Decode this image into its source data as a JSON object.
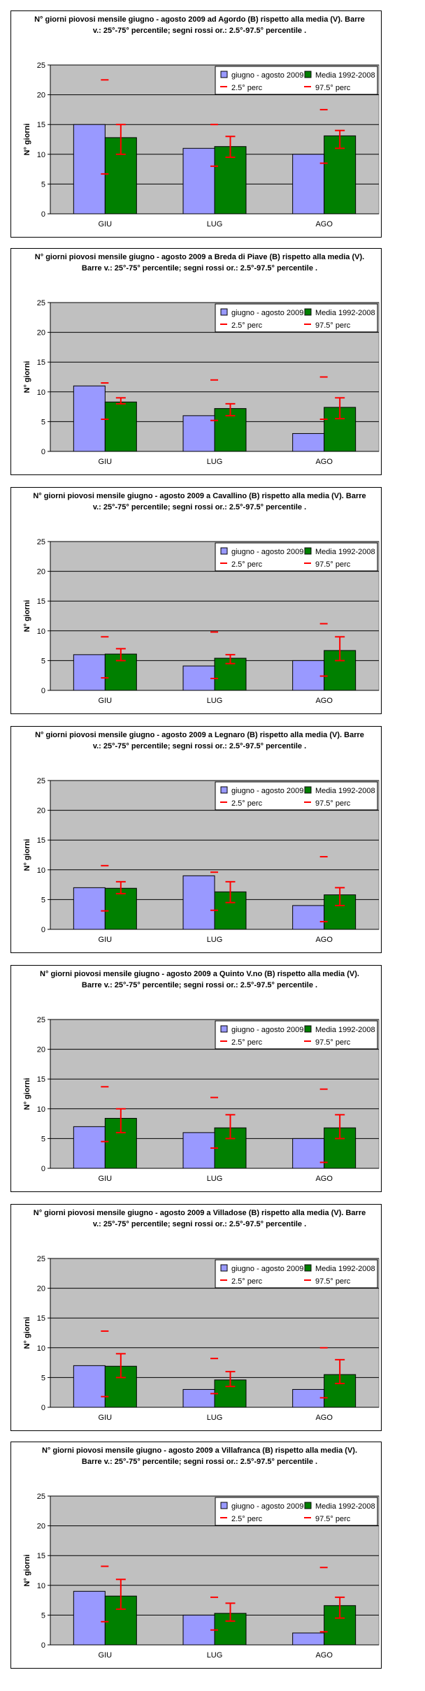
{
  "colors": {
    "plot_bg": "#c0c0c0",
    "series_2009": "#9999ff",
    "series_mean": "#008000",
    "whisker": "#ff0000",
    "gridline": "#000000"
  },
  "chart_data": [
    {
      "type": "bar",
      "title": "N° giorni piovosi mensile giugno - agosto 2009 ad Agordo (B) rispetto alla media (V). Barre v.: 25°-75° percentile; segni rossi or.: 2.5°-97.5° percentile .",
      "ylabel": "N° giorni",
      "ylim": [
        0,
        25
      ],
      "yticks": [
        "0",
        "5",
        "10",
        "15",
        "20",
        "25"
      ],
      "categories": [
        "GIU",
        "LUG",
        "AGO"
      ],
      "legend": {
        "position": "top-right",
        "entries": [
          "giugno - agosto 2009",
          "Media 1992-2008",
          "2.5° perc",
          "97.5° perc"
        ]
      },
      "grid": true,
      "series": [
        {
          "name": "giugno - agosto 2009",
          "values": [
            15,
            11,
            10
          ]
        },
        {
          "name": "Media 1992-2008",
          "values": [
            12.8,
            11.3,
            13.1
          ]
        }
      ],
      "percentile_25_75": [
        [
          10,
          15
        ],
        [
          9.5,
          13
        ],
        [
          11,
          14
        ]
      ],
      "perc_2_5": [
        6.7,
        8,
        8.5
      ],
      "perc_97_5": [
        22.5,
        15,
        17.5
      ]
    },
    {
      "type": "bar",
      "title": "N° giorni piovosi mensile giugno - agosto 2009 a Breda di Piave (B) rispetto alla media (V). Barre v.: 25°-75° percentile; segni rossi or.: 2.5°-97.5° percentile .",
      "ylabel": "N° giorni",
      "ylim": [
        0,
        25
      ],
      "yticks": [
        "0",
        "5",
        "10",
        "15",
        "20",
        "25"
      ],
      "categories": [
        "GIU",
        "LUG",
        "AGO"
      ],
      "legend": {
        "position": "top-right",
        "entries": [
          "giugno - agosto 2009",
          "Media 1992-2008",
          "2.5° perc",
          "97.5° perc"
        ]
      },
      "grid": true,
      "series": [
        {
          "name": "giugno - agosto 2009",
          "values": [
            11,
            6,
            3
          ]
        },
        {
          "name": "Media 1992-2008",
          "values": [
            8.3,
            7.2,
            7.4
          ]
        }
      ],
      "percentile_25_75": [
        [
          8,
          9
        ],
        [
          6,
          8
        ],
        [
          5.5,
          9
        ]
      ],
      "perc_2_5": [
        5.4,
        5.2,
        5.4
      ],
      "perc_97_5": [
        11.5,
        12,
        12.5
      ]
    },
    {
      "type": "bar",
      "title": "N° giorni piovosi mensile giugno - agosto 2009 a Cavallino (B) rispetto alla media (V). Barre v.: 25°-75° percentile; segni rossi or.: 2.5°-97.5° percentile .",
      "ylabel": "N° giorni",
      "ylim": [
        0,
        25
      ],
      "yticks": [
        "0",
        "5",
        "10",
        "15",
        "20",
        "25"
      ],
      "categories": [
        "GIU",
        "LUG",
        "AGO"
      ],
      "legend": {
        "position": "top-right",
        "entries": [
          "giugno - agosto 2009",
          "Media 1992-2008",
          "2.5° perc",
          "97.5° perc"
        ]
      },
      "grid": true,
      "series": [
        {
          "name": "giugno - agosto 2009",
          "values": [
            6,
            4.1,
            5
          ]
        },
        {
          "name": "Media 1992-2008",
          "values": [
            6.1,
            5.4,
            6.7
          ]
        }
      ],
      "percentile_25_75": [
        [
          5,
          7
        ],
        [
          4.5,
          6
        ],
        [
          5,
          9
        ]
      ],
      "perc_2_5": [
        2.1,
        2,
        2.4
      ],
      "perc_97_5": [
        9,
        9.8,
        11.2
      ]
    },
    {
      "type": "bar",
      "title": "N° giorni piovosi mensile giugno - agosto 2009 a Legnaro (B) rispetto alla media (V). Barre v.: 25°-75° percentile; segni rossi or.: 2.5°-97.5° percentile .",
      "ylabel": "N° giorni",
      "ylim": [
        0,
        25
      ],
      "yticks": [
        "0",
        "5",
        "10",
        "15",
        "20",
        "25"
      ],
      "categories": [
        "GIU",
        "LUG",
        "AGO"
      ],
      "legend": {
        "position": "top-right",
        "entries": [
          "giugno - agosto 2009",
          "Media 1992-2008",
          "2.5° perc",
          "97.5° perc"
        ]
      },
      "grid": true,
      "series": [
        {
          "name": "giugno - agosto 2009",
          "values": [
            7,
            9,
            4
          ]
        },
        {
          "name": "Media 1992-2008",
          "values": [
            6.9,
            6.3,
            5.8
          ]
        }
      ],
      "percentile_25_75": [
        [
          6,
          8
        ],
        [
          4.5,
          8
        ],
        [
          4,
          7
        ]
      ],
      "perc_2_5": [
        3.1,
        3.2,
        1.3
      ],
      "perc_97_5": [
        10.7,
        9.6,
        12.2
      ]
    },
    {
      "type": "bar",
      "title": "N° giorni piovosi mensile giugno - agosto 2009 a Quinto V.no (B) rispetto alla media (V). Barre v.: 25°-75° percentile; segni rossi or.: 2.5°-97.5° percentile .",
      "ylabel": "N° giorni",
      "ylim": [
        0,
        25
      ],
      "yticks": [
        "0",
        "5",
        "10",
        "15",
        "20",
        "25"
      ],
      "categories": [
        "GIU",
        "LUG",
        "AGO"
      ],
      "legend": {
        "position": "top-right",
        "entries": [
          "giugno - agosto 2009",
          "Media 1992-2008",
          "2.5° perc",
          "97.5° perc"
        ]
      },
      "grid": true,
      "series": [
        {
          "name": "giugno - agosto 2009",
          "values": [
            7,
            6,
            5
          ]
        },
        {
          "name": "Media 1992-2008",
          "values": [
            8.4,
            6.8,
            6.8
          ]
        }
      ],
      "percentile_25_75": [
        [
          6,
          10
        ],
        [
          5,
          9
        ],
        [
          5,
          9
        ]
      ],
      "perc_2_5": [
        4.5,
        3.4,
        1
      ],
      "perc_97_5": [
        13.7,
        11.9,
        13.3
      ]
    },
    {
      "type": "bar",
      "title": "N° giorni piovosi mensile giugno - agosto 2009 a Villadose (B) rispetto alla media (V). Barre v.: 25°-75° percentile; segni rossi or.: 2.5°-97.5° percentile .",
      "ylabel": "N° giorni",
      "ylim": [
        0,
        25
      ],
      "yticks": [
        "0",
        "5",
        "10",
        "15",
        "20",
        "25"
      ],
      "categories": [
        "GIU",
        "LUG",
        "AGO"
      ],
      "legend": {
        "position": "top-right",
        "entries": [
          "giugno - agosto 2009",
          "Media 1992-2008",
          "2.5° perc",
          "97.5° perc"
        ]
      },
      "grid": true,
      "series": [
        {
          "name": "giugno - agosto 2009",
          "values": [
            7,
            3,
            3
          ]
        },
        {
          "name": "Media 1992-2008",
          "values": [
            6.9,
            4.6,
            5.5
          ]
        }
      ],
      "percentile_25_75": [
        [
          5,
          9
        ],
        [
          3.5,
          6
        ],
        [
          4,
          8
        ]
      ],
      "perc_2_5": [
        1.8,
        2.3,
        1.6
      ],
      "perc_97_5": [
        12.8,
        8.2,
        10
      ]
    },
    {
      "type": "bar",
      "title": "N° giorni piovosi mensile giugno - agosto 2009 a Villafranca (B) rispetto alla media (V). Barre v.: 25°-75° percentile; segni rossi or.: 2.5°-97.5° percentile .",
      "ylabel": "N° giorni",
      "ylim": [
        0,
        25
      ],
      "yticks": [
        "0",
        "5",
        "10",
        "15",
        "20",
        "25"
      ],
      "categories": [
        "GIU",
        "LUG",
        "AGO"
      ],
      "legend": {
        "position": "top-right",
        "entries": [
          "giugno - agosto 2009",
          "Media 1992-2008",
          "2.5° perc",
          "97.5° perc"
        ]
      },
      "grid": true,
      "series": [
        {
          "name": "giugno - agosto 2009",
          "values": [
            9,
            5,
            2
          ]
        },
        {
          "name": "Media 1992-2008",
          "values": [
            8.2,
            5.3,
            6.6
          ]
        }
      ],
      "percentile_25_75": [
        [
          6,
          11
        ],
        [
          4,
          7
        ],
        [
          4.5,
          8
        ]
      ],
      "perc_2_5": [
        3.9,
        2.5,
        2.2
      ],
      "perc_97_5": [
        13.2,
        8,
        13
      ]
    }
  ]
}
